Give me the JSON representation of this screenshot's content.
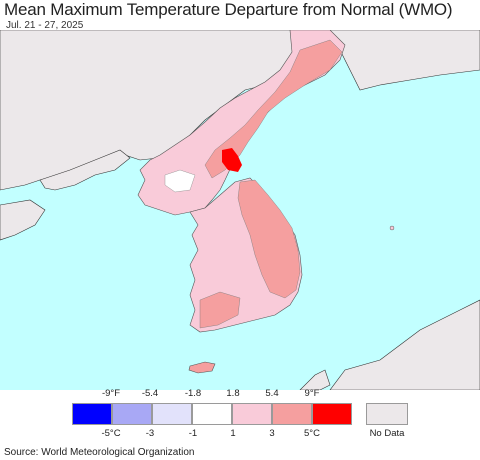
{
  "title": "Mean Maximum Temperature Departure from Normal (WMO)",
  "subtitle": "Jul. 21 - 27, 2025",
  "legend": {
    "fahrenheit_ticks": [
      "-9°F",
      "-5.4",
      "-1.8",
      "1.8",
      "5.4",
      "9°F"
    ],
    "celsius_ticks": [
      "-5°C",
      "-3",
      "-1",
      "1",
      "3",
      "5°C"
    ],
    "colors": [
      "#0000ff",
      "#a8a8f5",
      "#e2e2fb",
      "#ffffff",
      "#f9cbd9",
      "#f59f9f",
      "#ff0000"
    ],
    "no_data_label": "No Data",
    "no_data_color": "#ece8ea"
  },
  "source": "Source: World Meteorological Organization"
}
